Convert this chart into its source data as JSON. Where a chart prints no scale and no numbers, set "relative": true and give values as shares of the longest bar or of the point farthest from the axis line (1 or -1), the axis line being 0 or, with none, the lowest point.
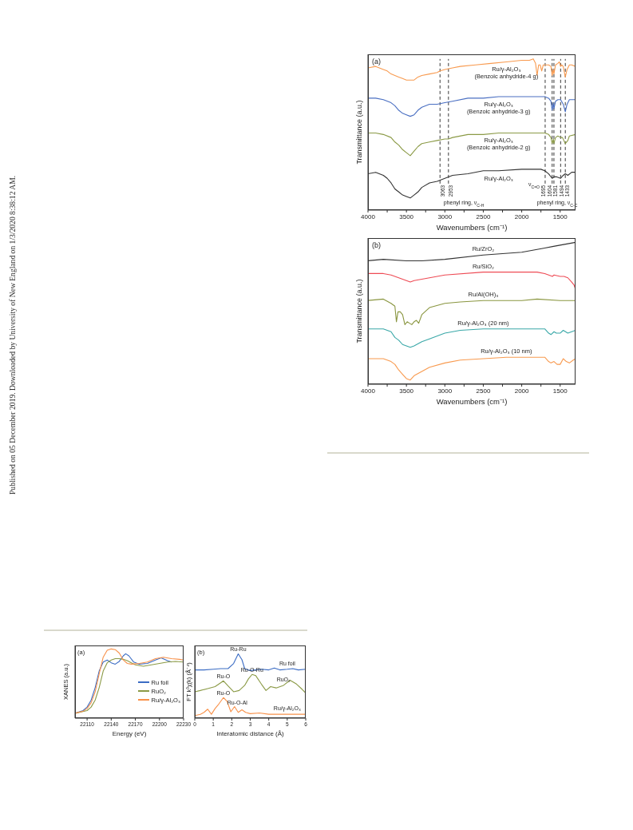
{
  "chart_data": [
    {
      "type": "line",
      "relative": true,
      "marker": "none",
      "xlabel": "Wavenumbers (cm⁻¹)",
      "ylabel": "Transmittance (a.u.)",
      "xlim": [
        4000,
        1300
      ],
      "xticks": [
        4000,
        {
          "value": 3750,
          "label": null
        },
        3500,
        {
          "value": 3250,
          "label": null
        },
        3000,
        {
          "value": 2750,
          "label": null
        },
        2500,
        {
          "value": 2250,
          "label": null
        },
        2000,
        {
          "value": 1750,
          "label": null
        },
        1500
      ],
      "series": [
        {
          "name": "Ru/γ-Al₂O₃ (Benzoic anhydride-4 g)",
          "color": "#f89a4f",
          "x": [
            4000,
            3900,
            3800,
            3750,
            3700,
            3650,
            3600,
            3550,
            3500,
            3450,
            3400,
            3350,
            3300,
            3200,
            3100,
            3063,
            3000,
            2900,
            2800,
            2600,
            2400,
            2200,
            2000,
            1900,
            1850,
            1820,
            1800,
            1780,
            1760,
            1740,
            1720,
            1695,
            1650,
            1620,
            1604,
            1590,
            1581,
            1560,
            1530,
            1510,
            1494,
            1480,
            1460,
            1433,
            1410,
            1380,
            1350,
            1300
          ],
          "values": [
            0.94,
            0.95,
            0.93,
            0.92,
            0.9,
            0.89,
            0.88,
            0.87,
            0.86,
            0.86,
            0.86,
            0.88,
            0.89,
            0.9,
            0.91,
            0.92,
            0.93,
            0.94,
            0.95,
            0.96,
            0.97,
            0.98,
            0.99,
            0.99,
            1.0,
            0.97,
            0.89,
            0.96,
            0.96,
            0.92,
            0.96,
            0.96,
            0.96,
            0.95,
            0.89,
            0.93,
            0.9,
            0.96,
            0.97,
            0.98,
            0.95,
            0.96,
            0.95,
            0.88,
            0.93,
            0.96,
            0.96,
            0.95
          ]
        },
        {
          "name": "Ru/γ-Al₂O₃ (Benzoic anhydride-3 g)",
          "color": "#4a6fc2",
          "x": [
            4000,
            3900,
            3800,
            3700,
            3650,
            3600,
            3550,
            3500,
            3450,
            3400,
            3350,
            3300,
            3200,
            3100,
            3000,
            2900,
            2700,
            2500,
            2300,
            2000,
            1800,
            1700,
            1650,
            1620,
            1604,
            1590,
            1581,
            1560,
            1530,
            1494,
            1460,
            1433,
            1410,
            1380,
            1300
          ],
          "values": [
            0.74,
            0.74,
            0.73,
            0.71,
            0.69,
            0.66,
            0.64,
            0.63,
            0.62,
            0.63,
            0.66,
            0.68,
            0.7,
            0.7,
            0.71,
            0.72,
            0.74,
            0.74,
            0.75,
            0.75,
            0.75,
            0.75,
            0.74,
            0.72,
            0.66,
            0.71,
            0.67,
            0.72,
            0.73,
            0.73,
            0.7,
            0.65,
            0.7,
            0.73,
            0.73
          ]
        },
        {
          "name": "Ru/γ-Al₂O₃ (Benzoic anhydride-2 g)",
          "color": "#8b9a46",
          "x": [
            4000,
            3900,
            3800,
            3700,
            3650,
            3600,
            3550,
            3500,
            3450,
            3400,
            3350,
            3300,
            3200,
            3100,
            3000,
            2953,
            2900,
            2700,
            2500,
            2300,
            2000,
            1800,
            1700,
            1650,
            1620,
            1604,
            1590,
            1581,
            1560,
            1530,
            1494,
            1470,
            1433,
            1400,
            1380,
            1300
          ],
          "values": [
            0.51,
            0.51,
            0.5,
            0.48,
            0.45,
            0.43,
            0.4,
            0.38,
            0.36,
            0.39,
            0.42,
            0.44,
            0.45,
            0.46,
            0.47,
            0.47,
            0.48,
            0.5,
            0.5,
            0.51,
            0.51,
            0.51,
            0.51,
            0.5,
            0.48,
            0.44,
            0.47,
            0.44,
            0.48,
            0.49,
            0.48,
            0.48,
            0.44,
            0.46,
            0.49,
            0.5
          ]
        },
        {
          "name": "Ru/γ-Al₂O₃",
          "color": "#333333",
          "x": [
            4000,
            3900,
            3800,
            3750,
            3700,
            3650,
            3600,
            3550,
            3500,
            3450,
            3400,
            3350,
            3300,
            3200,
            3100,
            3000,
            2900,
            2700,
            2500,
            2350,
            2300,
            2000,
            1800,
            1750,
            1700,
            1650,
            1604,
            1581,
            1550,
            1494,
            1460,
            1433,
            1400,
            1350,
            1300
          ],
          "values": [
            0.24,
            0.25,
            0.23,
            0.21,
            0.18,
            0.14,
            0.12,
            0.1,
            0.09,
            0.08,
            0.1,
            0.12,
            0.15,
            0.18,
            0.19,
            0.21,
            0.23,
            0.24,
            0.26,
            0.26,
            0.26,
            0.27,
            0.27,
            0.27,
            0.26,
            0.24,
            0.21,
            0.22,
            0.22,
            0.21,
            0.23,
            0.24,
            0.23,
            0.25,
            0.25
          ]
        }
      ],
      "ref_lines": [
        {
          "axis": "x",
          "value": 3063,
          "label": "3063",
          "line_style": "dashed",
          "color": "#222222"
        },
        {
          "axis": "x",
          "value": 2953,
          "label": "2953",
          "line_style": "dashed",
          "color": "#222222"
        },
        {
          "axis": "x",
          "value": 1695,
          "label": "1695",
          "line_style": "dashed",
          "color": "#222222"
        },
        {
          "axis": "x",
          "value": 1604,
          "label": "1604",
          "line_style": "dashed",
          "color": "#222222"
        },
        {
          "axis": "x",
          "value": 1581,
          "label": "1581",
          "line_style": "dashed",
          "color": "#222222"
        },
        {
          "axis": "x",
          "value": 1494,
          "label": "1494",
          "line_style": "dashed",
          "color": "#222222"
        },
        {
          "axis": "x",
          "value": 1433,
          "label": "1433",
          "line_style": "dashed",
          "color": "#222222"
        }
      ],
      "annotations": [
        "(a)",
        "phenyl ring, ν$_{C-H}$",
        "ν$_{C=O}$",
        "phenyl ring, ν$_{C-C}$",
        "Published on 05 December 2019. Downloaded by University of New England on 1/3/2020 8:38:12 AM."
      ]
    },
    {
      "type": "line",
      "relative": true,
      "marker": "none",
      "xlabel": "Wavenumbers (cm⁻¹)",
      "ylabel": "Transmittance (a.u.)",
      "xlim": [
        4000,
        1300
      ],
      "xticks": [
        4000,
        {
          "value": 3750,
          "label": null
        },
        3500,
        {
          "value": 3250,
          "label": null
        },
        3000,
        {
          "value": 2750,
          "label": null
        },
        2500,
        {
          "value": 2250,
          "label": null
        },
        2000,
        {
          "value": 1750,
          "label": null
        },
        1500
      ],
      "series": [
        {
          "name": "Ru/ZrO₂",
          "color": "#333333",
          "x": [
            4000,
            3800,
            3500,
            3300,
            3000,
            2500,
            2000,
            1800,
            1700,
            1600,
            1500,
            1400,
            1300
          ],
          "values": [
            0.87,
            0.88,
            0.87,
            0.87,
            0.88,
            0.91,
            0.93,
            0.95,
            0.96,
            0.97,
            0.98,
            0.99,
            1.0
          ]
        },
        {
          "name": "Ru/SiO₂",
          "color": "#ee4b55",
          "x": [
            4000,
            3800,
            3700,
            3600,
            3500,
            3450,
            3400,
            3300,
            3000,
            2500,
            2000,
            1800,
            1700,
            1650,
            1600,
            1580,
            1500,
            1450,
            1400,
            1350,
            1320,
            1300
          ],
          "values": [
            0.78,
            0.78,
            0.77,
            0.75,
            0.73,
            0.72,
            0.73,
            0.74,
            0.77,
            0.79,
            0.79,
            0.79,
            0.78,
            0.77,
            0.76,
            0.77,
            0.76,
            0.76,
            0.75,
            0.72,
            0.7,
            0.67
          ]
        },
        {
          "name": "Ru/Al(OH)₃",
          "color": "#8a9640",
          "x": [
            4000,
            3800,
            3700,
            3650,
            3630,
            3610,
            3580,
            3550,
            3520,
            3490,
            3460,
            3430,
            3400,
            3370,
            3340,
            3300,
            3200,
            3000,
            2800,
            2500,
            2000,
            1800,
            1500,
            1300
          ],
          "values": [
            0.59,
            0.6,
            0.57,
            0.55,
            0.44,
            0.51,
            0.51,
            0.49,
            0.42,
            0.44,
            0.43,
            0.42,
            0.44,
            0.45,
            0.43,
            0.49,
            0.54,
            0.57,
            0.58,
            0.59,
            0.59,
            0.6,
            0.59,
            0.59
          ]
        },
        {
          "name": "Ru/γ-Al₂O₃ (20 nm)",
          "color": "#3aa8a8",
          "x": [
            4000,
            3800,
            3700,
            3650,
            3600,
            3550,
            3500,
            3450,
            3400,
            3300,
            3200,
            3000,
            2800,
            2500,
            2000,
            1800,
            1700,
            1650,
            1620,
            1580,
            1550,
            1500,
            1460,
            1400,
            1350,
            1300
          ],
          "values": [
            0.39,
            0.39,
            0.37,
            0.33,
            0.31,
            0.28,
            0.27,
            0.26,
            0.27,
            0.3,
            0.32,
            0.36,
            0.38,
            0.39,
            0.39,
            0.39,
            0.39,
            0.36,
            0.35,
            0.37,
            0.36,
            0.36,
            0.38,
            0.36,
            0.37,
            0.38
          ]
        },
        {
          "name": "Ru/γ-Al₂O₃ (10 nm)",
          "color": "#f89a4f",
          "x": [
            4000,
            3800,
            3700,
            3650,
            3600,
            3550,
            3500,
            3450,
            3400,
            3300,
            3200,
            3000,
            2800,
            2500,
            2200,
            2000,
            1800,
            1700,
            1650,
            1620,
            1580,
            1540,
            1500,
            1460,
            1420,
            1380,
            1330,
            1300
          ],
          "values": [
            0.18,
            0.18,
            0.16,
            0.14,
            0.1,
            0.07,
            0.04,
            0.03,
            0.06,
            0.09,
            0.12,
            0.15,
            0.17,
            0.18,
            0.19,
            0.19,
            0.19,
            0.19,
            0.16,
            0.15,
            0.16,
            0.14,
            0.14,
            0.18,
            0.16,
            0.15,
            0.17,
            0.18
          ]
        }
      ],
      "annotations": [
        "(b)"
      ]
    },
    {
      "type": "line",
      "relative": true,
      "marker": "none",
      "legend": "right",
      "xlabel": "Energy (eV)",
      "ylabel": "XANES (a.u.)",
      "xlim": [
        22095,
        22230
      ],
      "xticks": [
        22110,
        22140,
        22170,
        22200,
        22230
      ],
      "series": [
        {
          "name": "Ru foil",
          "color": "#3b6cc4",
          "x": [
            22095,
            22105,
            22110,
            22115,
            22120,
            22125,
            22130,
            22135,
            22140,
            22145,
            22150,
            22155,
            22158,
            22162,
            22168,
            22175,
            22185,
            22195,
            22202,
            22210,
            22215
          ],
          "values": [
            0.07,
            0.11,
            0.16,
            0.26,
            0.44,
            0.68,
            0.81,
            0.84,
            0.8,
            0.78,
            0.82,
            0.9,
            0.93,
            0.9,
            0.81,
            0.78,
            0.79,
            0.84,
            0.87,
            0.83,
            0.81
          ]
        },
        {
          "name": "RuO₂",
          "color": "#8b9a46",
          "x": [
            22095,
            22110,
            22115,
            22120,
            22125,
            22130,
            22135,
            22140,
            22145,
            22150,
            22155,
            22160,
            22165,
            22170,
            22180,
            22190,
            22200,
            22210,
            22220,
            22230
          ],
          "values": [
            0.07,
            0.11,
            0.16,
            0.26,
            0.44,
            0.68,
            0.8,
            0.84,
            0.86,
            0.86,
            0.85,
            0.83,
            0.8,
            0.77,
            0.75,
            0.77,
            0.79,
            0.81,
            0.82,
            0.81
          ]
        },
        {
          "name": "Ru/γ-Al₂O₃",
          "color": "#f8914a",
          "x": [
            22095,
            22105,
            22110,
            22115,
            22120,
            22125,
            22130,
            22135,
            22140,
            22145,
            22150,
            22155,
            22160,
            22165,
            22175,
            22185,
            22195,
            22205,
            22215,
            22225,
            22230
          ],
          "values": [
            0.07,
            0.1,
            0.14,
            0.22,
            0.38,
            0.64,
            0.88,
            0.98,
            1.0,
            0.99,
            0.94,
            0.84,
            0.79,
            0.78,
            0.79,
            0.81,
            0.86,
            0.88,
            0.86,
            0.85,
            0.84
          ]
        }
      ],
      "annotations": [
        "(a)"
      ]
    },
    {
      "type": "line",
      "relative": true,
      "marker": "none",
      "xlabel": "Interatomic distance (Å)",
      "ylabel": "FT k³χ(k) (Å⁻⁴)",
      "xlim": [
        0,
        6
      ],
      "xticks": [
        0,
        1,
        2,
        3,
        4,
        5,
        6
      ],
      "series": [
        {
          "name": "Ru foil",
          "color": "#3b6cc4",
          "x": [
            0,
            0.5,
            1,
            1.4,
            1.8,
            2.1,
            2.35,
            2.55,
            2.7,
            3,
            3.3,
            3.6,
            4,
            4.3,
            4.6,
            5,
            5.3,
            5.6,
            6
          ],
          "values": [
            0.75,
            0.75,
            0.76,
            0.77,
            0.77,
            0.85,
            1.0,
            0.91,
            0.77,
            0.74,
            0.75,
            0.76,
            0.75,
            0.78,
            0.75,
            0.76,
            0.77,
            0.75,
            0.76
          ]
        },
        {
          "name": "RuO₂",
          "color": "#8b9a46",
          "x": [
            0,
            0.3,
            0.7,
            1.1,
            1.4,
            1.55,
            1.8,
            2.1,
            2.4,
            2.7,
            2.9,
            3.1,
            3.3,
            3.6,
            3.85,
            4.1,
            4.4,
            4.8,
            5.15,
            5.5,
            5.8,
            6
          ],
          "values": [
            0.41,
            0.43,
            0.46,
            0.49,
            0.55,
            0.58,
            0.5,
            0.41,
            0.43,
            0.51,
            0.61,
            0.68,
            0.66,
            0.53,
            0.43,
            0.49,
            0.47,
            0.51,
            0.59,
            0.53,
            0.45,
            0.39
          ]
        },
        {
          "name": "Ru/γ-Al₂O₃",
          "color": "#f8914a",
          "x": [
            0,
            0.3,
            0.5,
            0.7,
            0.9,
            1.1,
            1.3,
            1.55,
            1.75,
            1.95,
            2.15,
            2.35,
            2.55,
            2.75,
            3,
            3.5,
            4,
            5,
            6
          ],
          "values": [
            0.04,
            0.06,
            0.09,
            0.14,
            0.06,
            0.15,
            0.22,
            0.32,
            0.26,
            0.1,
            0.18,
            0.09,
            0.13,
            0.09,
            0.07,
            0.08,
            0.06,
            0.06,
            0.06
          ]
        }
      ],
      "annotations": [
        "(b)",
        {
          "text": "Ru-Ru",
          "x": 2.35,
          "y": 1.0
        },
        {
          "text": "Ru-O",
          "x": 1.55,
          "y": 0.58
        },
        {
          "text": "Ru-O-Ru",
          "x": 3.1,
          "y": 0.68
        },
        {
          "text": "Ru-O",
          "x": 1.55,
          "y": 0.32
        },
        {
          "text": "Ru-O-Al",
          "x": 2.3,
          "y": 0.18
        }
      ]
    }
  ]
}
